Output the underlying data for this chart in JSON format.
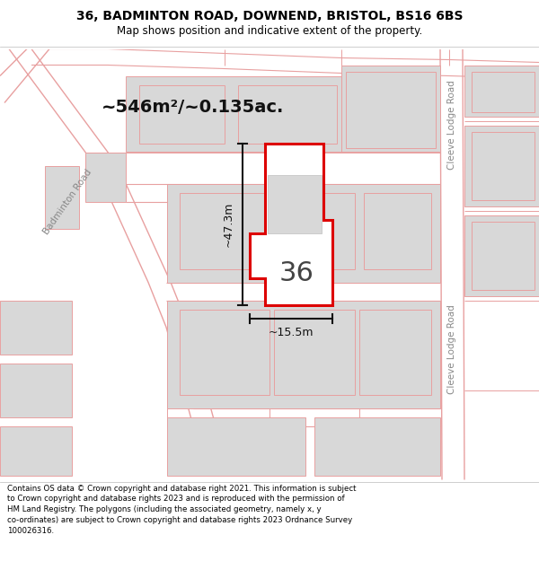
{
  "title_line1": "36, BADMINTON ROAD, DOWNEND, BRISTOL, BS16 6BS",
  "title_line2": "Map shows position and indicative extent of the property.",
  "footer_text": "Contains OS data © Crown copyright and database right 2021. This information is subject to Crown copyright and database rights 2023 and is reproduced with the permission of HM Land Registry. The polygons (including the associated geometry, namely x, y co-ordinates) are subject to Crown copyright and database rights 2023 Ordnance Survey 100026316.",
  "area_label": "~546m²/~0.135ac.",
  "number_label": "36",
  "dim_width_label": "~15.5m",
  "dim_height_label": "~47.3m",
  "map_bg": "#ffffff",
  "building_fill": "#d8d8d8",
  "building_stroke": "#e8a0a0",
  "highlight_fill": "#ffffff",
  "highlight_stroke": "#dd0000",
  "road_line_color": "#e8a0a0",
  "plot_line_color": "#e8a0a0",
  "dim_color": "#111111",
  "label_color": "#111111",
  "road_label_color": "#888888",
  "title_fontsize": 10,
  "subtitle_fontsize": 8.5,
  "footer_fontsize": 6.2,
  "area_fontsize": 14,
  "number_fontsize": 22,
  "dim_fontsize": 9,
  "road_label_fontsize": 7.5
}
